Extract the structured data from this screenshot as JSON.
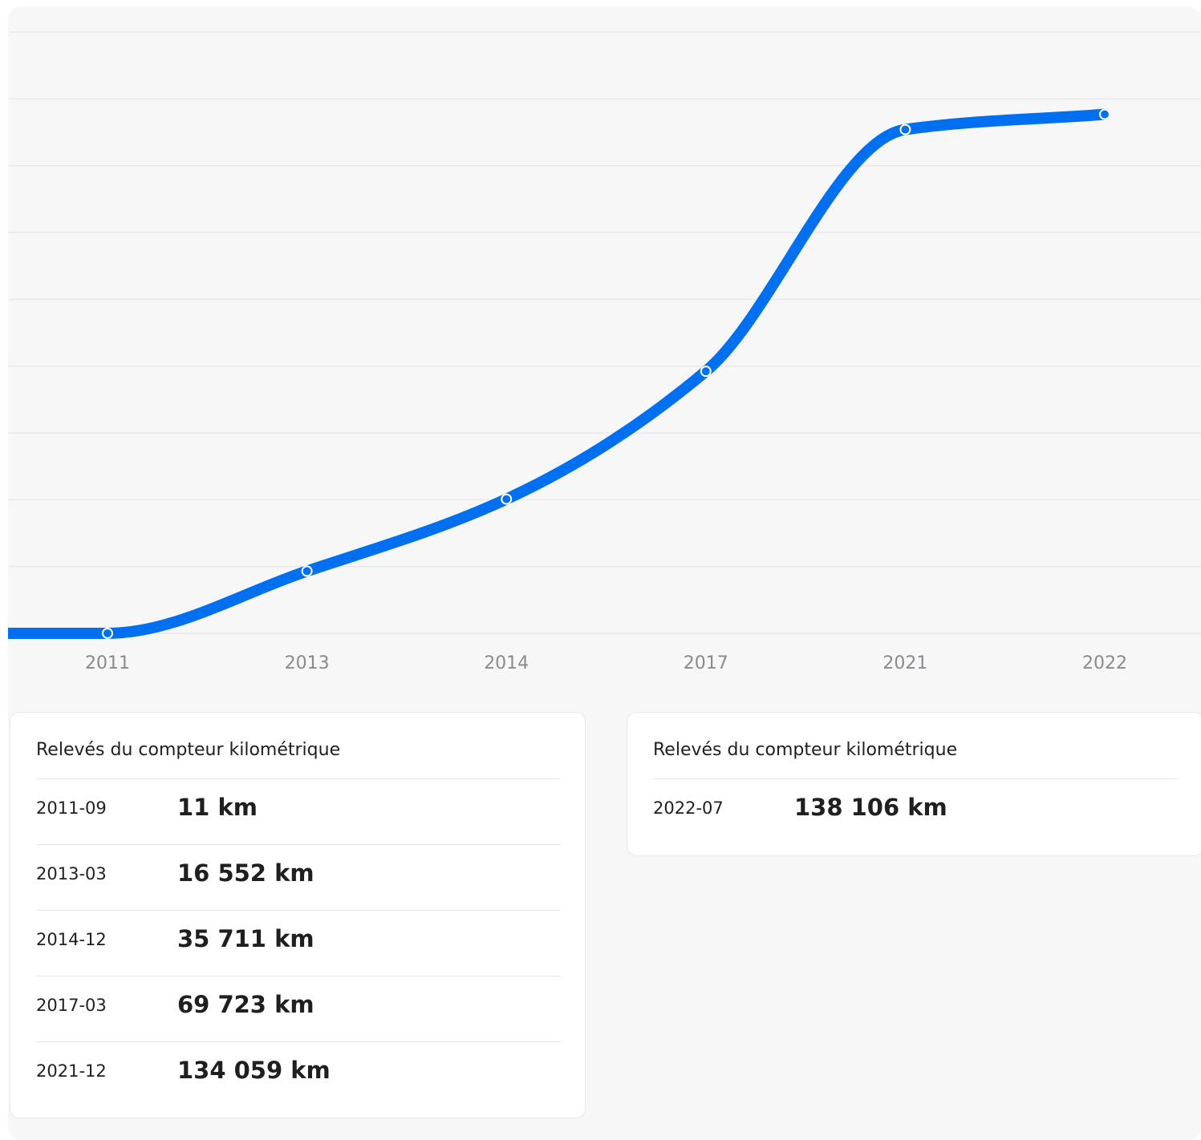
{
  "colors": {
    "line": "#0070f0",
    "grid": "#e8e8ea",
    "tick_text": "#8a8a8f",
    "background": "#f7f7f8"
  },
  "chart_data": {
    "type": "line",
    "categories": [
      "2011",
      "2013",
      "2014",
      "2017",
      "2021",
      "2022"
    ],
    "values": [
      11,
      16552,
      35711,
      69723,
      134059,
      138106
    ],
    "xlabel": "",
    "ylabel": "",
    "ylim": [
      0,
      160000
    ],
    "grid": true,
    "legend": "none"
  },
  "cards": [
    {
      "title": "Relevés du compteur kilométrique",
      "rows": [
        {
          "date": "2011-09",
          "value": "11 km"
        },
        {
          "date": "2013-03",
          "value": "16 552 km"
        },
        {
          "date": "2014-12",
          "value": "35 711 km"
        },
        {
          "date": "2017-03",
          "value": "69 723 km"
        },
        {
          "date": "2021-12",
          "value": "134 059 km"
        }
      ]
    },
    {
      "title": "Relevés du compteur kilométrique",
      "rows": [
        {
          "date": "2022-07",
          "value": "138 106 km"
        }
      ]
    }
  ]
}
